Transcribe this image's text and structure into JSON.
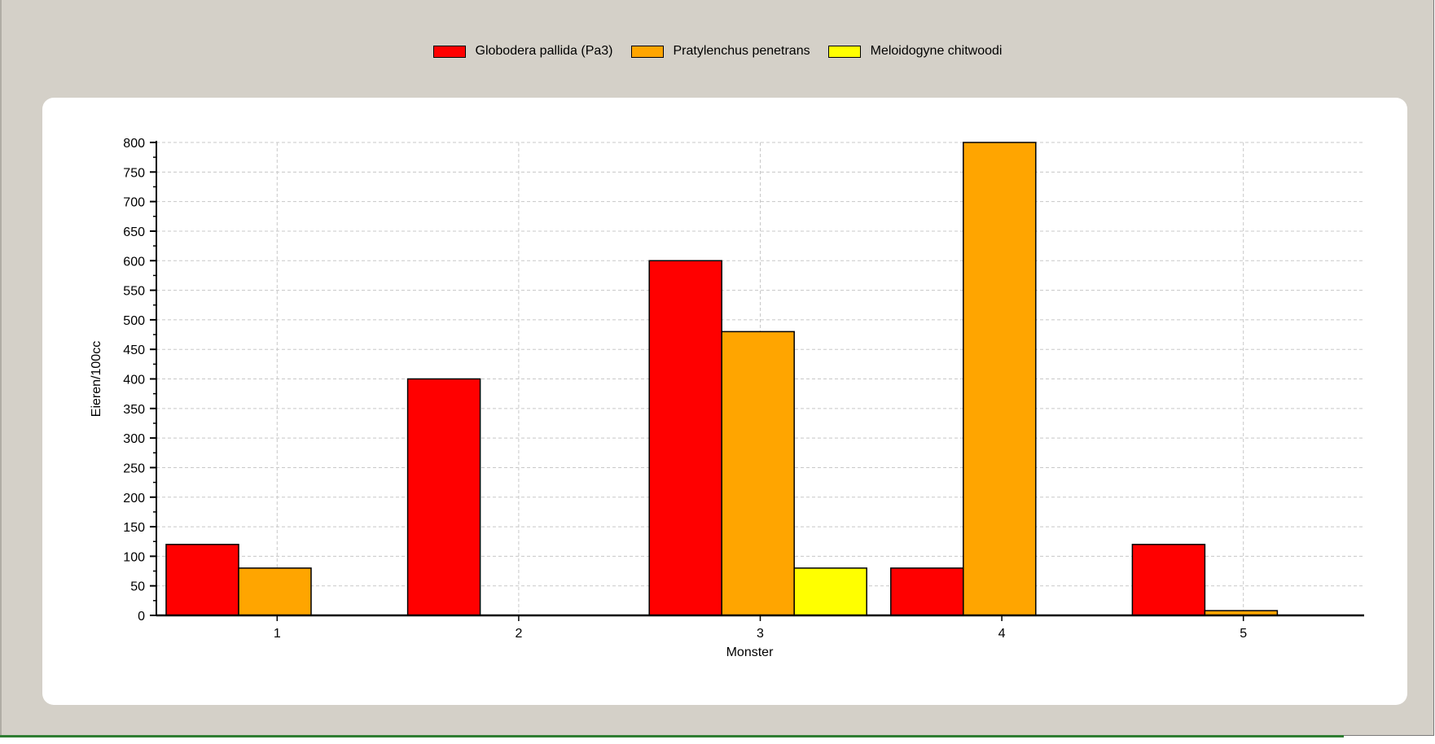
{
  "legend": {
    "items": [
      {
        "label": "Globodera pallida (Pa3)",
        "color": "#ff0000"
      },
      {
        "label": "Pratylenchus penetrans",
        "color": "#ffa500"
      },
      {
        "label": "Meloidogyne chitwoodi",
        "color": "#ffff00"
      }
    ]
  },
  "chart_data": {
    "type": "bar",
    "categories": [
      "1",
      "2",
      "3",
      "4",
      "5"
    ],
    "series": [
      {
        "name": "Globodera pallida (Pa3)",
        "color": "#ff0000",
        "values": [
          120,
          400,
          600,
          80,
          120
        ]
      },
      {
        "name": "Pratylenchus penetrans",
        "color": "#ffa500",
        "values": [
          80,
          0,
          480,
          800,
          8
        ]
      },
      {
        "name": "Meloidogyne chitwoodi",
        "color": "#ffff00",
        "values": [
          0,
          0,
          80,
          0,
          0
        ]
      }
    ],
    "xlabel": "Monster",
    "ylabel": "Eieren/100cc",
    "ylim": [
      0,
      800
    ],
    "ytick_step": 50,
    "grid": true,
    "legend_position": "top-center"
  }
}
